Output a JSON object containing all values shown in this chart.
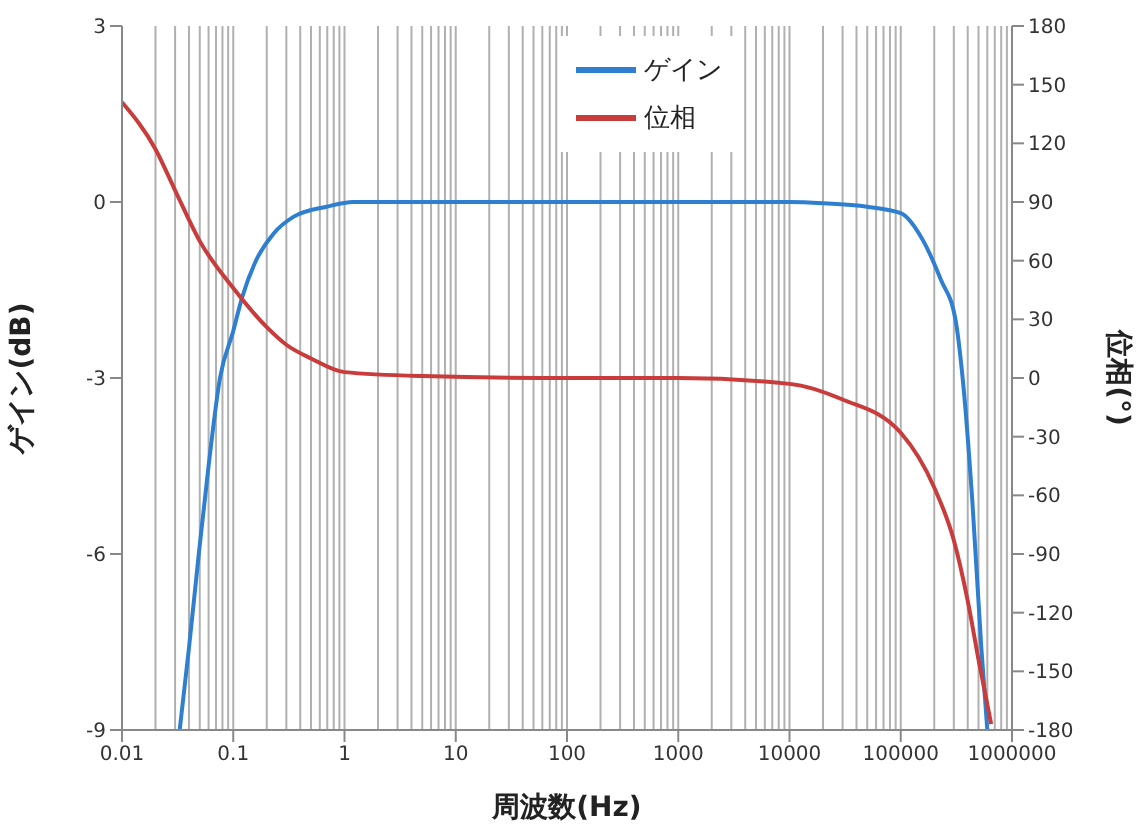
{
  "chart_data": {
    "type": "line",
    "xlabel": "周波数(Hz)",
    "ylabel": "ゲイン(dB)",
    "y2label": "位相(°)",
    "log": "x",
    "xlim": [
      0.01,
      1000000
    ],
    "xticks": [
      0.01,
      0.1,
      1,
      10,
      100,
      1000,
      10000,
      100000,
      1000000
    ],
    "ylim": [
      -9,
      3
    ],
    "yticks": [
      -9,
      -6,
      -3,
      0,
      3
    ],
    "y2lim": [
      -180,
      180
    ],
    "y2ticks": [
      -180,
      -150,
      -120,
      -90,
      -60,
      -30,
      0,
      30,
      60,
      90,
      120,
      150,
      180
    ],
    "grid": true,
    "legend": "top right",
    "line_style": "solid",
    "marker": "none",
    "series": [
      {
        "name": "ゲイン",
        "color": "#2e7fd0",
        "x": [
          0.033,
          0.04,
          0.049,
          0.06,
          0.076,
          0.1,
          0.12,
          0.16,
          0.23,
          0.35,
          0.69,
          1.2,
          10,
          100,
          1000,
          10000,
          20000,
          50000,
          100000,
          158000,
          230000,
          310000,
          360000,
          440000,
          530000,
          600000
        ],
        "values": [
          -9,
          -7.6,
          -6,
          -4.5,
          -3,
          -2.2,
          -1.63,
          -1,
          -0.54,
          -0.25,
          -0.08,
          0,
          0,
          0,
          0,
          0,
          -0.02,
          -0.08,
          -0.19,
          -0.65,
          -1.33,
          -2,
          -3,
          -5.1,
          -7.6,
          -9
        ]
      },
      {
        "name": "位相",
        "color": "#c83c3c",
        "axis": "y2",
        "x": [
          0.01,
          0.02,
          0.03,
          0.05,
          0.1,
          0.2,
          0.3,
          0.5,
          1,
          5,
          100,
          1000,
          10000,
          30000,
          100000,
          200000,
          300000,
          400000,
          500000,
          650000
        ],
        "values": [
          141,
          117,
          96,
          70,
          46,
          26,
          17,
          10,
          3,
          1,
          0,
          0,
          -3,
          -11,
          -28,
          -56,
          -83,
          -114,
          -144,
          -177
        ]
      }
    ]
  }
}
